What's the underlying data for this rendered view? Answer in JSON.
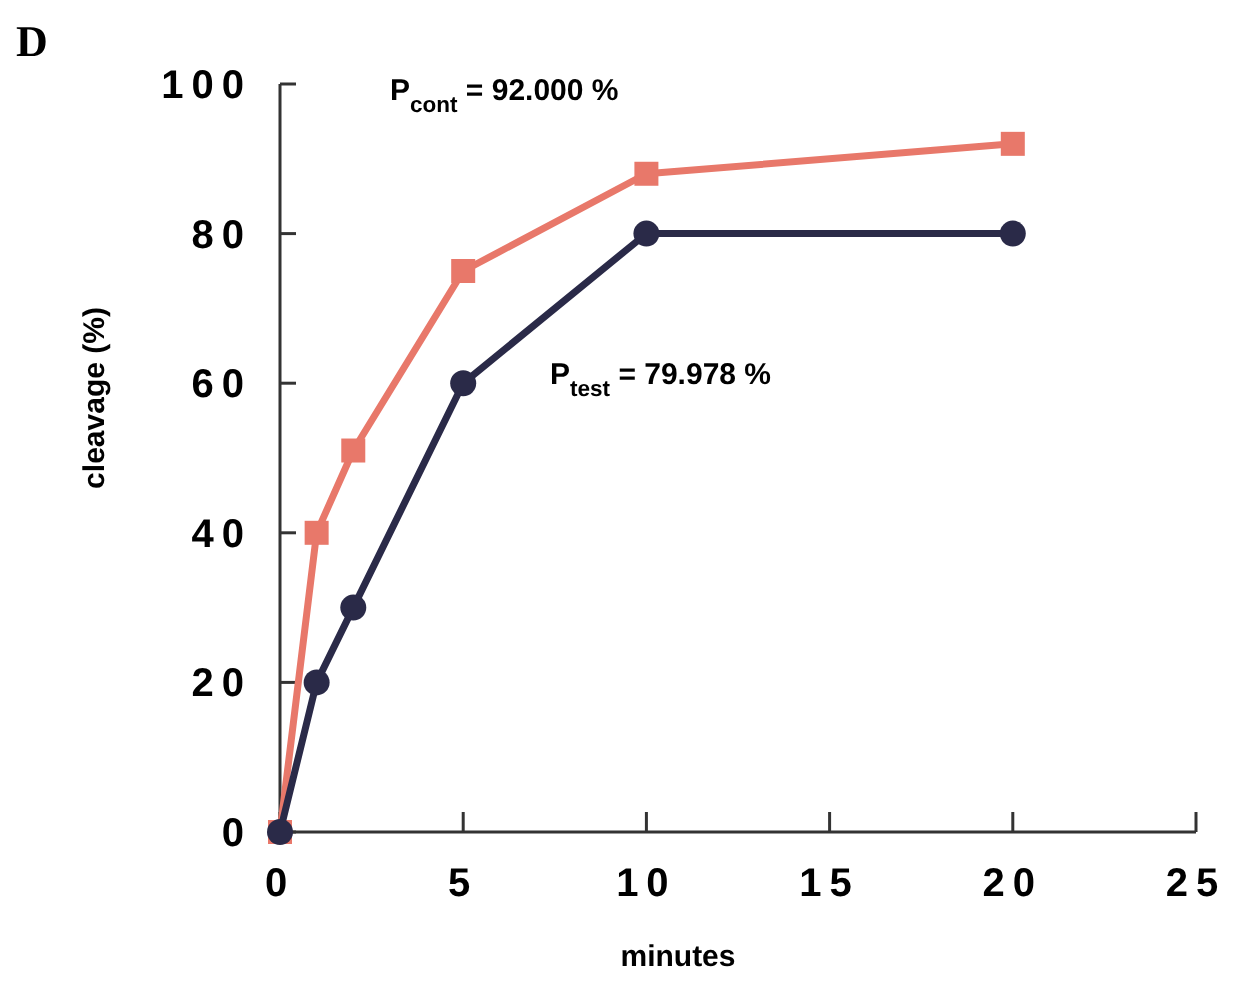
{
  "chart_data": {
    "type": "line",
    "title": "D",
    "xlabel": "minutes",
    "ylabel": "cleavage (%)",
    "x": [
      0,
      1,
      2,
      5,
      10,
      20
    ],
    "series": [
      {
        "color": "#e8786a",
        "marker": "square",
        "values": [
          0,
          40,
          51,
          75,
          88,
          92
        ]
      },
      {
        "color": "#2a2a48",
        "marker": "circle",
        "values": [
          0,
          20,
          30,
          60,
          80,
          80
        ]
      }
    ],
    "xlim": [
      0,
      25
    ],
    "xticks": [
      0,
      5,
      10,
      15,
      20,
      25
    ],
    "ylim": [
      0,
      100
    ],
    "yticks": [
      0,
      20,
      40,
      60,
      80,
      100
    ],
    "annotations": [
      "P$_{cont}$ = 92.000 %",
      "P$_{test}$ = 79.978 %"
    ],
    "grid": false,
    "line_style": "solid"
  }
}
